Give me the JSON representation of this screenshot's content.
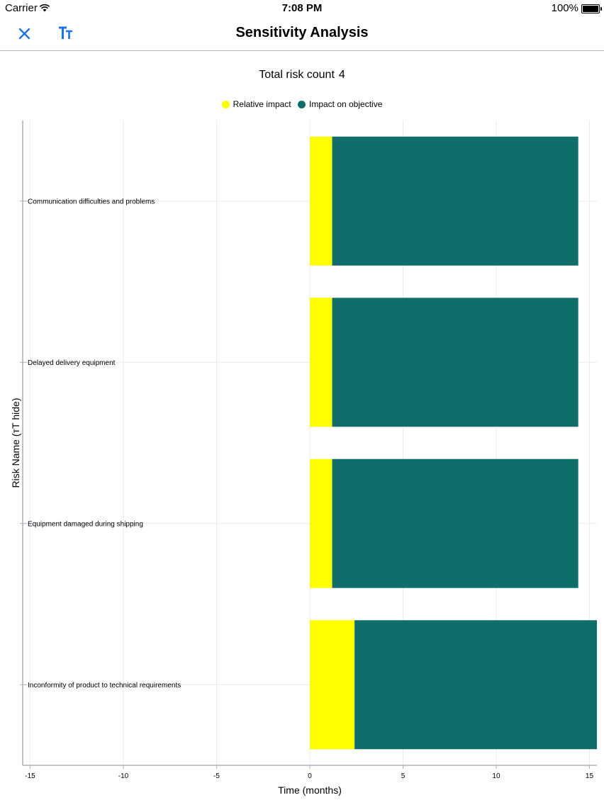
{
  "status_bar": {
    "carrier": "Carrier",
    "time": "7:08 PM",
    "battery": "100%"
  },
  "nav": {
    "title": "Sensitivity Analysis",
    "close_icon": "close-icon",
    "font_icon": "text-size-icon"
  },
  "summary": {
    "label": "Total risk count",
    "count": "4"
  },
  "colors": {
    "accent": "#1a73e8",
    "relative_impact": "#ffff00",
    "impact_on_objective": "#0f6e6a",
    "grid": "#ececf2",
    "axis": "#b0aec0"
  },
  "chart_data": {
    "type": "bar",
    "orientation": "horizontal",
    "stacked": true,
    "categories": [
      "Communication difficulties and problems",
      "Delayed delivery equipment",
      "Equipment damaged during shipping",
      "Inconformity of product to technical requirements"
    ],
    "series": [
      {
        "name": "Relative impact",
        "color": "#ffff00",
        "values": [
          1.2,
          1.2,
          1.2,
          2.4
        ]
      },
      {
        "name": "Impact on objective",
        "color": "#0f6e6a",
        "values": [
          13.2,
          13.2,
          13.2,
          13.0
        ]
      }
    ],
    "xlabel": "Time (months)",
    "ylabel": "Risk Name (тТ hide)",
    "xlim": [
      -15.4,
      15.4
    ],
    "xticks": [
      -15,
      -10,
      -5,
      0,
      5,
      10,
      15
    ],
    "legend": "top-center",
    "grid": true
  }
}
